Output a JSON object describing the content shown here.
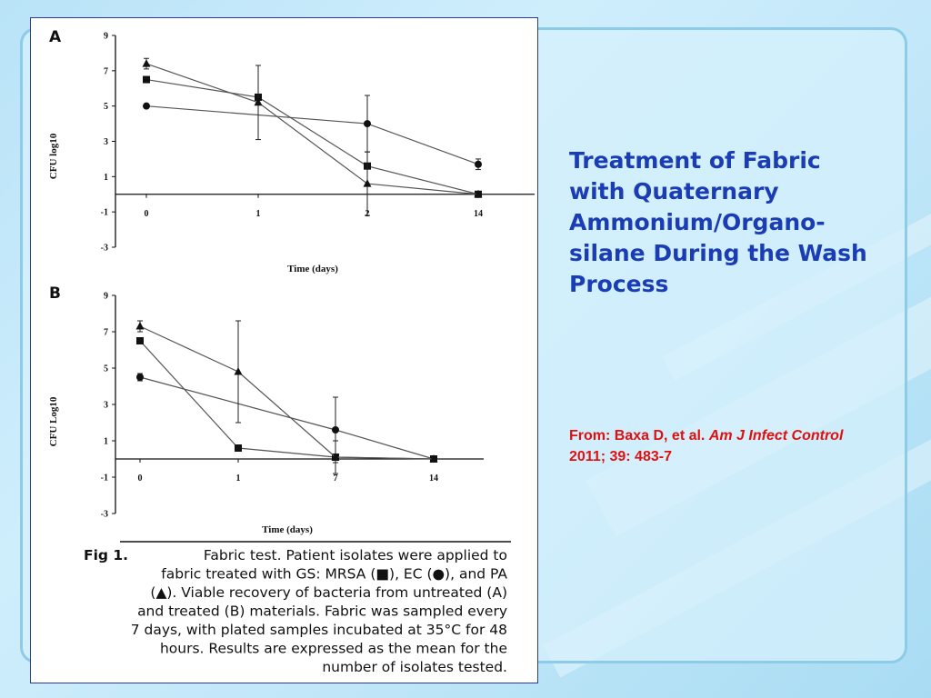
{
  "slide": {
    "title": "Treatment of Fabric with Quaternary Ammonium/Organo-silane During the Wash Process",
    "citation_prefix": "From: Baxa D, et al. ",
    "citation_journal": "Am J Infect Control",
    "citation_suffix": " 2011; 39: 483-7",
    "colors": {
      "title": "#1a3db5",
      "citation": "#e01010",
      "background": "#c7ebfa"
    }
  },
  "figure": {
    "caption_label": "Fig 1.",
    "caption_lines": [
      "Fabric test. Patient isolates were applied to",
      "fabric treated with GS: MRSA (■), EC (●), and PA",
      "(▲). Viable recovery of bacteria from untreated (A)",
      "and treated (B) materials. Fabric was sampled every",
      "7 days, with plated samples incubated at 35°C for 48",
      "hours. Results are expressed as the mean for the",
      "number of isolates tested."
    ]
  },
  "chart_data": [
    {
      "type": "line",
      "panel": "A",
      "xlabel": "Time (days)",
      "ylabel": "CFU log10",
      "categories": [
        "0",
        "1",
        "2",
        "14"
      ],
      "ylim": [
        -3,
        9
      ],
      "yticks": [
        -3,
        -1,
        1,
        3,
        5,
        7,
        9
      ],
      "grid": false,
      "series": [
        {
          "name": "MRSA",
          "marker": "square",
          "values": [
            6.5,
            5.5,
            1.6,
            0
          ]
        },
        {
          "name": "EC",
          "marker": "circle",
          "values": [
            5.0,
            null,
            4.0,
            1.7
          ],
          "error": [
            0,
            0,
            1.6,
            0.3
          ]
        },
        {
          "name": "PA",
          "marker": "triangle",
          "values": [
            7.4,
            5.2,
            0.6,
            0
          ],
          "error": [
            0.3,
            2.1,
            1.8,
            0
          ]
        }
      ]
    },
    {
      "type": "line",
      "panel": "B",
      "xlabel": "Time (days)",
      "ylabel": "CFU Log10",
      "categories": [
        "0",
        "1",
        "7",
        "14"
      ],
      "ylim": [
        -3,
        9
      ],
      "yticks": [
        -3,
        -1,
        1,
        3,
        5,
        7,
        9
      ],
      "grid": false,
      "series": [
        {
          "name": "MRSA",
          "marker": "square",
          "values": [
            6.5,
            0.6,
            0.1,
            0
          ]
        },
        {
          "name": "EC",
          "marker": "circle",
          "values": [
            4.5,
            null,
            1.6,
            0
          ],
          "error": [
            0.2,
            0,
            1.8,
            0
          ]
        },
        {
          "name": "PA",
          "marker": "triangle",
          "values": [
            7.3,
            4.8,
            0.1,
            0
          ],
          "error": [
            0.3,
            2.8,
            0.9,
            0
          ]
        }
      ]
    }
  ]
}
